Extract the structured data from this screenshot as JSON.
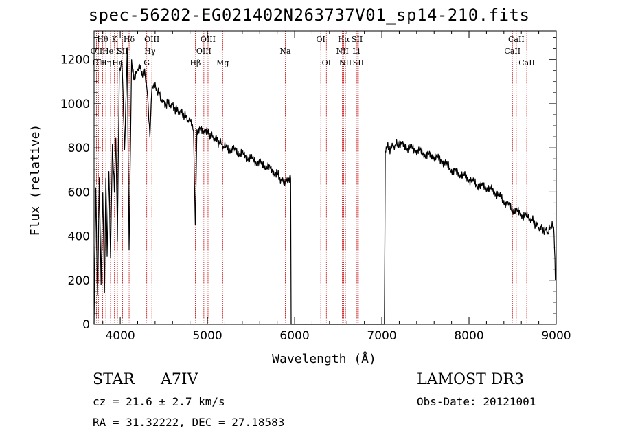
{
  "chart_data": {
    "type": "line",
    "title": "spec-56202-EG021402N263737V01_sp14-210.fits",
    "xlabel": "Wavelength (Å)",
    "ylabel": "Flux (relative)",
    "xlim": [
      3700,
      9000
    ],
    "ylim": [
      0,
      1330
    ],
    "xticks": [
      4000,
      5000,
      6000,
      7000,
      8000,
      9000
    ],
    "yticks": [
      0,
      200,
      400,
      600,
      800,
      1000,
      1200
    ],
    "series": [
      {
        "name": "flux",
        "x": [
          3700,
          3720,
          3740,
          3760,
          3780,
          3800,
          3820,
          3835,
          3850,
          3870,
          3889,
          3910,
          3933,
          3950,
          3968,
          3990,
          4020,
          4050,
          4080,
          4102,
          4130,
          4160,
          4190,
          4220,
          4250,
          4280,
          4310,
          4340,
          4360,
          4400,
          4450,
          4500,
          4550,
          4600,
          4650,
          4700,
          4750,
          4800,
          4840,
          4861,
          4880,
          4920,
          4960,
          5000,
          5050,
          5100,
          5150,
          5200,
          5300,
          5400,
          5500,
          5600,
          5700,
          5800,
          5850,
          5880,
          5900,
          5920,
          5940,
          5955,
          5960,
          5970,
          5975,
          5990,
          6300,
          6600,
          6900,
          7030,
          7035,
          7040,
          7050,
          7100,
          7150,
          7200,
          7300,
          7400,
          7500,
          7600,
          7700,
          7800,
          7900,
          8000,
          8100,
          8200,
          8300,
          8400,
          8500,
          8600,
          8700,
          8750,
          8800,
          8850,
          8900,
          8920,
          8940,
          8960,
          8975,
          8985,
          8990
        ],
        "values": [
          0,
          620,
          120,
          650,
          200,
          600,
          150,
          680,
          320,
          700,
          300,
          800,
          600,
          850,
          400,
          1150,
          1200,
          780,
          1250,
          350,
          1200,
          1100,
          1150,
          1180,
          1120,
          1160,
          1050,
          850,
          1060,
          1080,
          1040,
          1000,
          1000,
          990,
          970,
          960,
          940,
          920,
          880,
          430,
          880,
          900,
          870,
          870,
          850,
          840,
          820,
          800,
          790,
          770,
          750,
          730,
          710,
          680,
          650,
          640,
          650,
          660,
          640,
          680,
          0,
          0,
          0,
          0,
          0,
          0,
          0,
          0,
          350,
          790,
          800,
          800,
          810,
          820,
          800,
          790,
          770,
          760,
          740,
          700,
          680,
          660,
          630,
          620,
          600,
          560,
          520,
          500,
          480,
          460,
          440,
          430,
          420,
          430,
          440,
          450,
          400,
          300,
          200
        ]
      }
    ],
    "lines": [
      {
        "wl": 3727,
        "label": "OII",
        "row": 2
      },
      {
        "wl": 3750,
        "label": "OII",
        "row": 3
      },
      {
        "wl": 3798,
        "label": "Hθ",
        "row": 1
      },
      {
        "wl": 3835,
        "label": "Hη",
        "row": 3
      },
      {
        "wl": 3889,
        "label": "He I",
        "row": 2
      },
      {
        "wl": 3934,
        "label": "K",
        "row": 1
      },
      {
        "wl": 3968,
        "label": "Hε",
        "row": 3
      },
      {
        "wl": 4026,
        "label": "SII",
        "row": 2
      },
      {
        "wl": 4102,
        "label": "Hδ",
        "row": 1
      },
      {
        "wl": 4304,
        "label": "G",
        "row": 3
      },
      {
        "wl": 4341,
        "label": "Hγ",
        "row": 2
      },
      {
        "wl": 4363,
        "label": "OIII",
        "row": 1
      },
      {
        "wl": 4861,
        "label": "Hβ",
        "row": 3
      },
      {
        "wl": 4959,
        "label": "OIII",
        "row": 2
      },
      {
        "wl": 5007,
        "label": "OIII",
        "row": 1
      },
      {
        "wl": 5175,
        "label": "Mg",
        "row": 3
      },
      {
        "wl": 5893,
        "label": "Na",
        "row": 2
      },
      {
        "wl": 6300,
        "label": "OI",
        "row": 1
      },
      {
        "wl": 6364,
        "label": "OI",
        "row": 3
      },
      {
        "wl": 6548,
        "label": "NII",
        "row": 2
      },
      {
        "wl": 6563,
        "label": "Hα",
        "row": 1
      },
      {
        "wl": 6583,
        "label": "NII",
        "row": 3
      },
      {
        "wl": 6707,
        "label": "Li",
        "row": 2
      },
      {
        "wl": 6717,
        "label": "SII",
        "row": 1
      },
      {
        "wl": 6731,
        "label": "SII",
        "row": 3
      },
      {
        "wl": 8498,
        "label": "CaII",
        "row": 2
      },
      {
        "wl": 8542,
        "label": "CaII",
        "row": 1
      },
      {
        "wl": 8662,
        "label": "CaII",
        "row": 3
      }
    ]
  },
  "info": {
    "object_type": "STAR",
    "subclass": "A7IV",
    "survey": "LAMOST DR3",
    "cz": "cz = 21.6 ± 2.7 km/s",
    "obs_date": "Obs-Date: 20121001",
    "coords": "RA =  31.32222, DEC =  27.18583"
  },
  "colors": {
    "axis": "#000000",
    "spectrum": "#000000",
    "line_marker": "#c00000"
  }
}
